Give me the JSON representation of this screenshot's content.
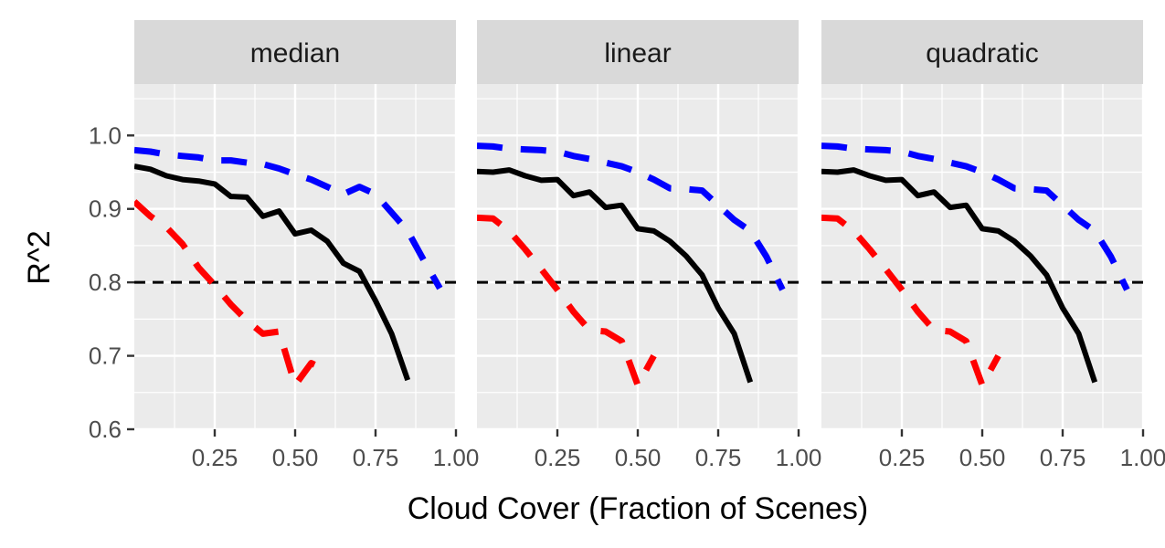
{
  "chart_data": {
    "type": "line",
    "facets": [
      "median",
      "linear",
      "quadratic"
    ],
    "xlabel": "Cloud Cover (Fraction of Scenes)",
    "ylabel": "R^2",
    "xlim": [
      0.0,
      1.0
    ],
    "ylim": [
      0.6,
      1.07
    ],
    "x_ticks": [
      0.25,
      0.5,
      0.75,
      1.0
    ],
    "x_tick_labels": [
      "0.25",
      "0.50",
      "0.75",
      "1.00"
    ],
    "y_ticks": [
      0.6,
      0.7,
      0.8,
      0.9,
      1.0
    ],
    "y_tick_labels": [
      "0.6",
      "0.7",
      "0.8",
      "0.9",
      "1.0"
    ],
    "reference_line": {
      "y": 0.8,
      "style": "dashed",
      "color": "#000000"
    },
    "grid": true,
    "legend": "none",
    "series_colors": {
      "black": "#000000",
      "blue": "#0000ff",
      "red": "#ff0000"
    },
    "panels": [
      {
        "facet": "median",
        "series": [
          {
            "color": "#000000",
            "style": "solid",
            "points": [
              [
                0.0,
                0.958
              ],
              [
                0.05,
                0.954
              ],
              [
                0.1,
                0.945
              ],
              [
                0.15,
                0.94
              ],
              [
                0.2,
                0.938
              ],
              [
                0.25,
                0.934
              ],
              [
                0.3,
                0.917
              ],
              [
                0.35,
                0.916
              ],
              [
                0.4,
                0.89
              ],
              [
                0.45,
                0.897
              ],
              [
                0.5,
                0.866
              ],
              [
                0.55,
                0.871
              ],
              [
                0.6,
                0.856
              ],
              [
                0.65,
                0.826
              ],
              [
                0.7,
                0.815
              ],
              [
                0.75,
                0.775
              ],
              [
                0.8,
                0.73
              ],
              [
                0.85,
                0.667
              ]
            ]
          },
          {
            "color": "#0000ff",
            "style": "dashed",
            "points": [
              [
                0.0,
                0.98
              ],
              [
                0.05,
                0.978
              ],
              [
                0.1,
                0.974
              ],
              [
                0.15,
                0.972
              ],
              [
                0.2,
                0.97
              ],
              [
                0.25,
                0.966
              ],
              [
                0.3,
                0.966
              ],
              [
                0.35,
                0.963
              ],
              [
                0.4,
                0.961
              ],
              [
                0.45,
                0.955
              ],
              [
                0.5,
                0.947
              ],
              [
                0.55,
                0.94
              ],
              [
                0.6,
                0.93
              ],
              [
                0.65,
                0.92
              ],
              [
                0.7,
                0.93
              ],
              [
                0.75,
                0.92
              ],
              [
                0.8,
                0.895
              ],
              [
                0.85,
                0.87
              ],
              [
                0.9,
                0.83
              ],
              [
                0.95,
                0.792
              ]
            ]
          },
          {
            "color": "#ff0000",
            "style": "dashed",
            "points": [
              [
                0.0,
                0.91
              ],
              [
                0.05,
                0.89
              ],
              [
                0.1,
                0.875
              ],
              [
                0.15,
                0.852
              ],
              [
                0.2,
                0.82
              ],
              [
                0.25,
                0.796
              ],
              [
                0.3,
                0.77
              ],
              [
                0.35,
                0.748
              ],
              [
                0.4,
                0.73
              ],
              [
                0.45,
                0.733
              ],
              [
                0.5,
                0.66
              ],
              [
                0.55,
                0.69
              ],
              [
                0.57,
                0.686
              ]
            ]
          }
        ]
      },
      {
        "facet": "linear",
        "series": [
          {
            "color": "#000000",
            "style": "solid",
            "points": [
              [
                0.0,
                0.951
              ],
              [
                0.05,
                0.95
              ],
              [
                0.1,
                0.953
              ],
              [
                0.15,
                0.945
              ],
              [
                0.2,
                0.939
              ],
              [
                0.25,
                0.94
              ],
              [
                0.3,
                0.918
              ],
              [
                0.35,
                0.923
              ],
              [
                0.4,
                0.902
              ],
              [
                0.45,
                0.905
              ],
              [
                0.5,
                0.873
              ],
              [
                0.55,
                0.87
              ],
              [
                0.6,
                0.856
              ],
              [
                0.65,
                0.836
              ],
              [
                0.7,
                0.81
              ],
              [
                0.75,
                0.765
              ],
              [
                0.8,
                0.73
              ],
              [
                0.85,
                0.664
              ]
            ]
          },
          {
            "color": "#0000ff",
            "style": "dashed",
            "points": [
              [
                0.0,
                0.986
              ],
              [
                0.05,
                0.985
              ],
              [
                0.1,
                0.982
              ],
              [
                0.15,
                0.981
              ],
              [
                0.2,
                0.98
              ],
              [
                0.25,
                0.978
              ],
              [
                0.3,
                0.972
              ],
              [
                0.35,
                0.968
              ],
              [
                0.4,
                0.963
              ],
              [
                0.45,
                0.958
              ],
              [
                0.5,
                0.95
              ],
              [
                0.55,
                0.94
              ],
              [
                0.6,
                0.928
              ],
              [
                0.65,
                0.927
              ],
              [
                0.7,
                0.925
              ],
              [
                0.75,
                0.905
              ],
              [
                0.8,
                0.885
              ],
              [
                0.85,
                0.87
              ],
              [
                0.9,
                0.835
              ],
              [
                0.95,
                0.79
              ]
            ]
          },
          {
            "color": "#ff0000",
            "style": "dashed",
            "points": [
              [
                0.0,
                0.888
              ],
              [
                0.05,
                0.887
              ],
              [
                0.1,
                0.87
              ],
              [
                0.15,
                0.845
              ],
              [
                0.2,
                0.818
              ],
              [
                0.25,
                0.79
              ],
              [
                0.3,
                0.76
              ],
              [
                0.35,
                0.735
              ],
              [
                0.4,
                0.733
              ],
              [
                0.45,
                0.72
              ],
              [
                0.5,
                0.66
              ],
              [
                0.55,
                0.7
              ]
            ]
          }
        ]
      },
      {
        "facet": "quadratic",
        "series": [
          {
            "color": "#000000",
            "style": "solid",
            "points": [
              [
                0.0,
                0.951
              ],
              [
                0.05,
                0.95
              ],
              [
                0.1,
                0.953
              ],
              [
                0.15,
                0.945
              ],
              [
                0.2,
                0.939
              ],
              [
                0.25,
                0.94
              ],
              [
                0.3,
                0.918
              ],
              [
                0.35,
                0.923
              ],
              [
                0.4,
                0.902
              ],
              [
                0.45,
                0.905
              ],
              [
                0.5,
                0.873
              ],
              [
                0.55,
                0.87
              ],
              [
                0.6,
                0.856
              ],
              [
                0.65,
                0.836
              ],
              [
                0.7,
                0.81
              ],
              [
                0.75,
                0.765
              ],
              [
                0.8,
                0.73
              ],
              [
                0.85,
                0.664
              ]
            ]
          },
          {
            "color": "#0000ff",
            "style": "dashed",
            "points": [
              [
                0.0,
                0.986
              ],
              [
                0.05,
                0.985
              ],
              [
                0.1,
                0.982
              ],
              [
                0.15,
                0.981
              ],
              [
                0.2,
                0.98
              ],
              [
                0.25,
                0.978
              ],
              [
                0.3,
                0.972
              ],
              [
                0.35,
                0.968
              ],
              [
                0.4,
                0.963
              ],
              [
                0.45,
                0.958
              ],
              [
                0.5,
                0.95
              ],
              [
                0.55,
                0.94
              ],
              [
                0.6,
                0.928
              ],
              [
                0.65,
                0.927
              ],
              [
                0.7,
                0.925
              ],
              [
                0.75,
                0.905
              ],
              [
                0.8,
                0.885
              ],
              [
                0.85,
                0.87
              ],
              [
                0.9,
                0.835
              ],
              [
                0.95,
                0.79
              ]
            ]
          },
          {
            "color": "#ff0000",
            "style": "dashed",
            "points": [
              [
                0.0,
                0.888
              ],
              [
                0.05,
                0.887
              ],
              [
                0.1,
                0.87
              ],
              [
                0.15,
                0.845
              ],
              [
                0.2,
                0.818
              ],
              [
                0.25,
                0.79
              ],
              [
                0.3,
                0.76
              ],
              [
                0.35,
                0.735
              ],
              [
                0.4,
                0.733
              ],
              [
                0.45,
                0.72
              ],
              [
                0.5,
                0.66
              ],
              [
                0.55,
                0.7
              ]
            ]
          }
        ]
      }
    ]
  }
}
